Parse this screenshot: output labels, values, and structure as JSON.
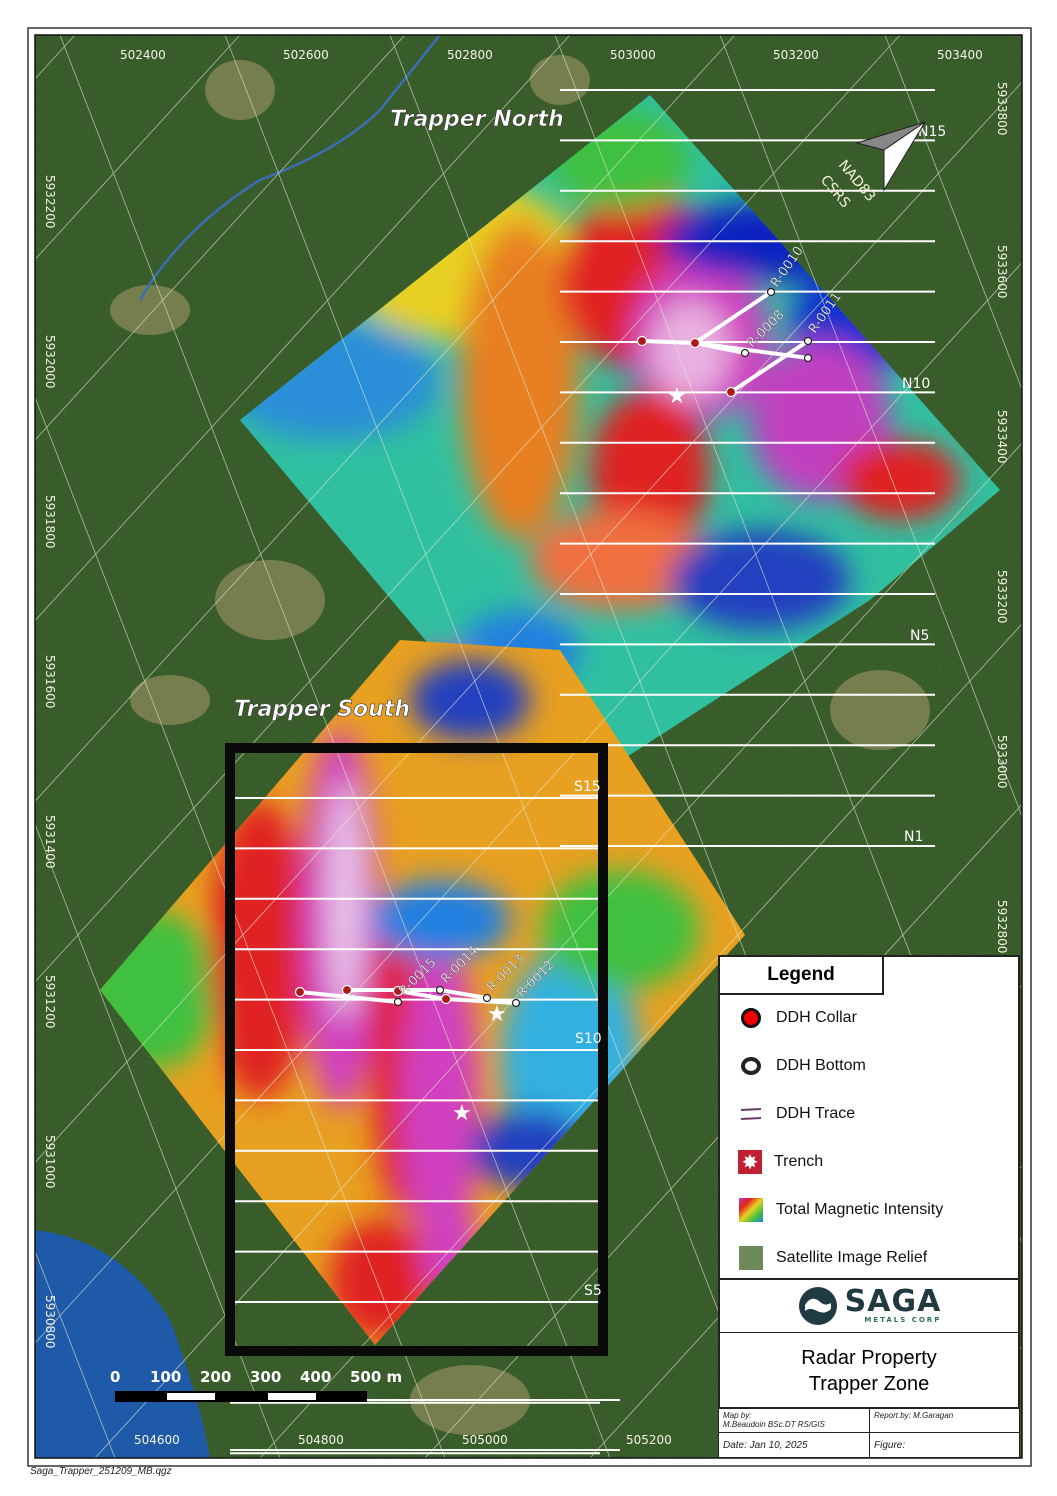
{
  "map": {
    "region_labels": {
      "north": "Trapper North",
      "south": "Trapper South"
    },
    "easting_top": [
      "502400",
      "502600",
      "502800",
      "503000",
      "503200",
      "503400"
    ],
    "easting_bottom": [
      "504600",
      "504800",
      "505000",
      "505200"
    ],
    "northing_left": [
      "5932200",
      "5932000",
      "5931800",
      "5931600",
      "5931400",
      "5931200",
      "5931000",
      "5930800"
    ],
    "northing_right": [
      "5933800",
      "5933600",
      "5933400",
      "5933200",
      "5933000",
      "5932800"
    ],
    "line_labels": {
      "n15": "N15",
      "n10": "N10",
      "n5": "N5",
      "n1": "N1",
      "s15": "S15",
      "s10": "S10",
      "s5": "S5"
    },
    "north_arrow": {
      "datum_1": "NAD83",
      "datum_2": "CSRS"
    },
    "drillholes": [
      "R-0008",
      "R-0010",
      "R-0011",
      "R-0012",
      "R-0013",
      "R-0014",
      "R-0015"
    ],
    "scale_bar": {
      "ticks": [
        "0",
        "100",
        "200",
        "300",
        "400",
        "500 m"
      ]
    },
    "colors": {
      "forest": "#2f4f1f",
      "water": "#1f5aa8",
      "collar": "#c0141a",
      "frame": "#111111"
    }
  },
  "legend": {
    "title": "Legend",
    "items": [
      {
        "label": "DDH Collar",
        "icon": "red-dot-icon"
      },
      {
        "label": "DDH Bottom",
        "icon": "open-circle-icon"
      },
      {
        "label": "DDH Trace",
        "icon": "line-icon"
      },
      {
        "label": "Trench",
        "icon": "star-icon"
      },
      {
        "label": "Total Magnetic Intensity",
        "icon": "tmi-swatch-icon"
      },
      {
        "label": "Satellite Image  Relief",
        "icon": "satellite-swatch-icon"
      }
    ]
  },
  "logo": {
    "name": "SAGA",
    "sub": "METALS CORP"
  },
  "title": {
    "line1": "Radar Property",
    "line2": "Trapper Zone"
  },
  "info": {
    "map_by_label": "Map by:",
    "map_by": "M.Beaudoin BSc.DT RS/GIS",
    "report_by": "Report by: M.Garagan",
    "date": "Date: Jan 10, 2025",
    "figure": "Figure:"
  },
  "footer": {
    "filename": "Saga_Trapper_251209_MB.qgz"
  }
}
